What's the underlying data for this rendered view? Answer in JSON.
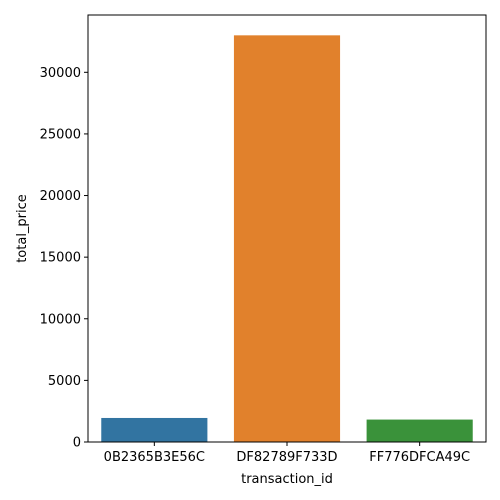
{
  "chart_data": {
    "type": "bar",
    "categories": [
      "0B2365B3E56C",
      "DF82789F733D",
      "FF776DFCA49C"
    ],
    "values": [
      1950,
      33000,
      1820
    ],
    "colors": [
      "#3274a1",
      "#e1812c",
      "#3a923a"
    ],
    "xlabel": "transaction_id",
    "ylabel": "total_price",
    "ylim": [
      0,
      34650
    ],
    "yticks": [
      0,
      5000,
      10000,
      15000,
      20000,
      25000,
      30000
    ],
    "grid": false
  }
}
